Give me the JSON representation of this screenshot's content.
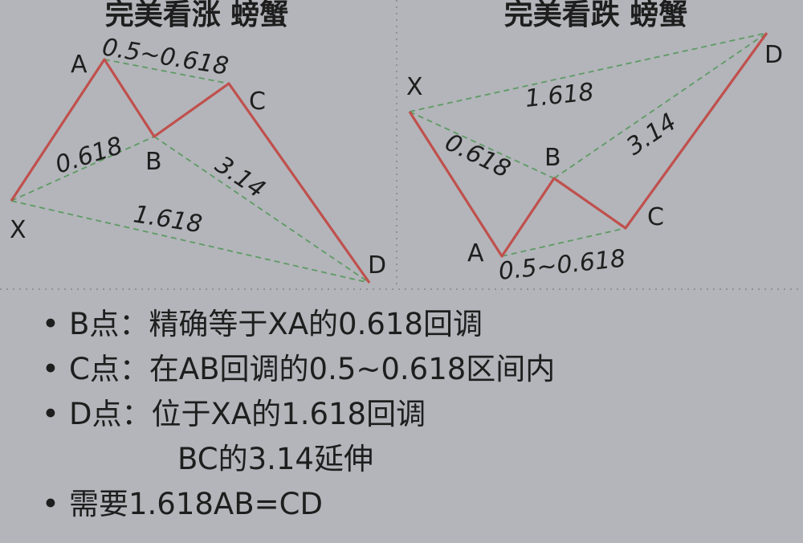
{
  "bullish": {
    "title": "完美看涨 螃蟹",
    "points": {
      "X": "X",
      "A": "A",
      "B": "B",
      "C": "C",
      "D": "D"
    },
    "ratios": {
      "xa_b": "0.618",
      "ab_c": "0.5~0.618",
      "bc_d": "3.14",
      "xa_d": "1.618"
    }
  },
  "bearish": {
    "title": "完美看跌 螃蟹",
    "points": {
      "X": "X",
      "A": "A",
      "B": "B",
      "C": "C",
      "D": "D"
    },
    "ratios": {
      "xa_b": "0.618",
      "ab_c": "0.5~0.618",
      "bc_d": "3.14",
      "xa_d": "1.618"
    }
  },
  "colors": {
    "pattern_line": "#c0504d",
    "guide_line": "#5e9a64",
    "background": "#b3b5ba"
  },
  "rules": [
    {
      "label": "B点：",
      "text": "精确等于XA的0.618回调",
      "cont": ""
    },
    {
      "label": "C点：",
      "text": "在AB回调的0.5~0.618区间内",
      "cont": ""
    },
    {
      "label": "D点：",
      "text": "位于XA的1.618回调",
      "cont": "BC的3.14延伸"
    },
    {
      "label": "",
      "text": "需要1.618AB=CD",
      "cont": ""
    }
  ]
}
